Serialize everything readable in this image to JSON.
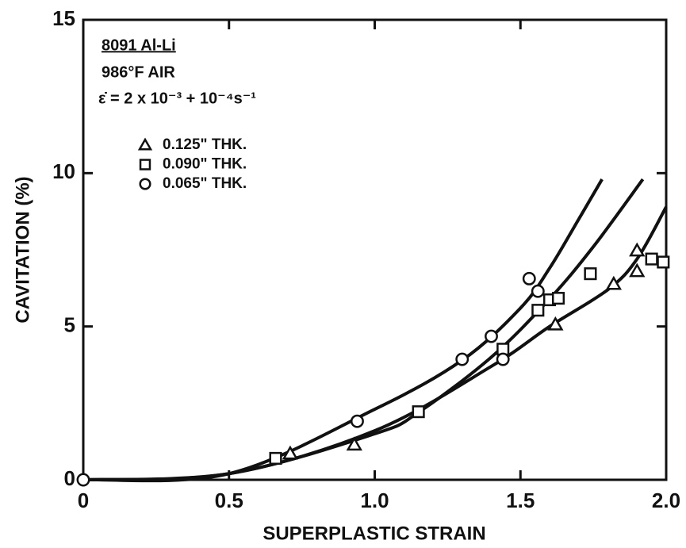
{
  "chart_data": {
    "type": "scatter",
    "annotations": [
      "8091 Al-Li",
      "986°F AIR",
      "ε̇ = 2 x 10⁻³ + 10⁻⁴s⁻¹"
    ],
    "xlabel": "SUPERPLASTIC STRAIN",
    "ylabel": "CAVITATION (%)",
    "xlim": [
      0,
      2
    ],
    "ylim": [
      0,
      15
    ],
    "xticks": [
      0,
      0.5,
      {
        "value": 1,
        "label": "1.0"
      },
      1.5,
      {
        "value": 2,
        "label": "2.0"
      }
    ],
    "yticks": [
      0,
      5,
      10,
      15
    ],
    "color": "#111111",
    "series": [
      {
        "name": "0.125\" THK.",
        "marker": "triangle",
        "color": "#111111",
        "x": [
          0.71,
          0.93,
          1.62,
          1.82,
          1.9,
          1.9
        ],
        "values": [
          0.85,
          1.14,
          5.06,
          6.38,
          7.47,
          6.8
        ]
      },
      {
        "name": "0.090\" THK.",
        "marker": "square",
        "color": "#111111",
        "x": [
          0.66,
          1.15,
          1.44,
          1.56,
          1.6,
          1.63,
          1.74,
          1.95,
          1.99
        ],
        "values": [
          0.7,
          2.22,
          4.26,
          5.53,
          5.87,
          5.92,
          6.72,
          7.2,
          7.1
        ]
      },
      {
        "name": "0.065\" THK.",
        "marker": "circle",
        "color": "#111111",
        "x": [
          0,
          0.94,
          1.3,
          1.4,
          1.44,
          1.53,
          1.56
        ],
        "values": [
          0,
          1.91,
          3.93,
          4.68,
          3.93,
          6.56,
          6.15
        ]
      }
    ],
    "curves": [
      {
        "x": [
          0,
          0.5,
          1.0,
          1.3,
          1.5,
          1.6,
          1.7,
          1.78
        ],
        "values": [
          0,
          0.2,
          2.3,
          3.9,
          5.6,
          6.9,
          8.5,
          9.8
        ]
      },
      {
        "x": [
          0,
          0.5,
          1.0,
          1.15,
          1.4,
          1.6,
          1.75,
          1.92
        ],
        "values": [
          0,
          0.2,
          1.5,
          2.2,
          4.0,
          5.9,
          7.6,
          9.8
        ]
      },
      {
        "x": [
          0,
          0.5,
          1.0,
          1.4,
          1.6,
          1.8,
          1.9,
          2.0
        ],
        "values": [
          0,
          0.2,
          1.6,
          3.7,
          5.0,
          6.2,
          7.2,
          8.9
        ]
      }
    ]
  }
}
